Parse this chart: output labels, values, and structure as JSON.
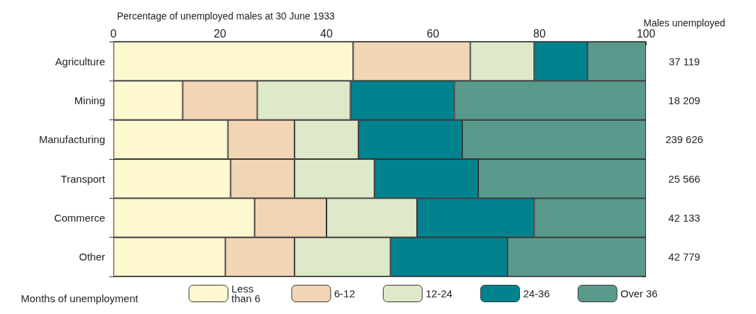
{
  "chart_data": {
    "type": "bar",
    "orientation": "horizontal",
    "stacked": true,
    "xlabel": "Percentage of unemployed males at 30 June 1933",
    "y2label": "Males unemployed",
    "legend_title": "Months of unemployment",
    "legend": "bottom",
    "grid": false,
    "categories": [
      "Agriculture",
      "Mining",
      "Manufacturing",
      "Transport",
      "Commerce",
      "Other"
    ],
    "xlim": [
      0,
      100
    ],
    "xticks": [
      0,
      20,
      40,
      60,
      80,
      100
    ],
    "series": [
      {
        "name": "Less than 6",
        "color": "#fdf8d0",
        "values": [
          45,
          13,
          21.5,
          22,
          26.5,
          21
        ]
      },
      {
        "name": "6-12",
        "color": "#f2d5b5",
        "values": [
          22,
          14,
          12.5,
          12,
          13.5,
          13
        ]
      },
      {
        "name": "12-24",
        "color": "#dde9c8",
        "values": [
          12,
          17.5,
          12,
          15,
          17,
          18
        ]
      },
      {
        "name": "24-36",
        "color": "#00838f",
        "values": [
          10,
          19.5,
          19.5,
          19.5,
          22,
          22
        ]
      },
      {
        "name": "Over 36",
        "color": "#5a9a8c",
        "values": [
          11,
          36,
          34.5,
          31.5,
          21,
          26
        ]
      }
    ],
    "annotations": [
      "37 119",
      "18 209",
      "239 626",
      "25 566",
      "42 133",
      "42 779"
    ]
  }
}
